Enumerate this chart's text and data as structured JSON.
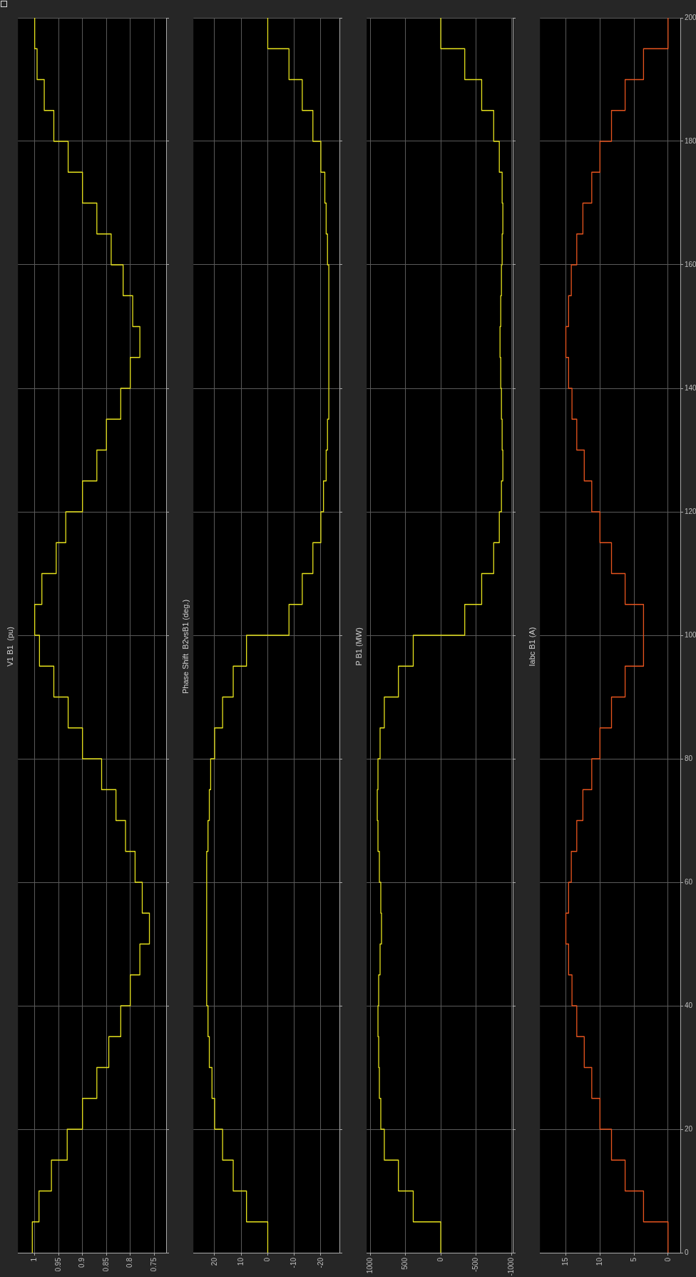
{
  "chart_data": [
    {
      "type": "line",
      "title": "V1 B1  (pu)",
      "color": "#e6e21c",
      "x": [
        1.005,
        1.005,
        0.991,
        0.991,
        0.965,
        0.965,
        0.932,
        0.932,
        0.9,
        0.9,
        0.87,
        0.87,
        0.845,
        0.845,
        0.82,
        0.82,
        0.8,
        0.8,
        0.78,
        0.78,
        0.76,
        0.76,
        0.775,
        0.775,
        0.79,
        0.79,
        0.81,
        0.81,
        0.83,
        0.83,
        0.86,
        0.86,
        0.9,
        0.9,
        0.93,
        0.93,
        0.96,
        0.96,
        0.99,
        0.99,
        1.0,
        1.0,
        0.985,
        0.985,
        0.955,
        0.955,
        0.935,
        0.935,
        0.9,
        0.9,
        0.87,
        0.87,
        0.85,
        0.85,
        0.82,
        0.82,
        0.8,
        0.8,
        0.78,
        0.78,
        0.795,
        0.795,
        0.815,
        0.815,
        0.84,
        0.84,
        0.87,
        0.87,
        0.9,
        0.9,
        0.93,
        0.93,
        0.96,
        0.96,
        0.98,
        0.98,
        0.995,
        0.995,
        1.0,
        1.0
      ],
      "values": [
        0,
        5,
        5,
        10,
        10,
        15,
        15,
        20,
        20,
        25,
        25,
        30,
        30,
        35,
        35,
        40,
        40,
        45,
        45,
        50,
        50,
        55,
        55,
        60,
        60,
        65,
        65,
        70,
        70,
        75,
        75,
        80,
        80,
        85,
        85,
        90,
        90,
        95,
        95,
        100,
        100,
        105,
        105,
        110,
        110,
        115,
        115,
        120,
        120,
        125,
        125,
        130,
        130,
        135,
        135,
        140,
        140,
        145,
        145,
        150,
        150,
        155,
        155,
        160,
        160,
        165,
        165,
        170,
        170,
        175,
        175,
        180,
        180,
        185,
        185,
        190,
        190,
        195,
        195,
        200
      ],
      "xlim": [
        1.035,
        0.725
      ],
      "xticks": [
        1,
        0.95,
        0.9,
        0.85,
        0.8,
        0.75
      ],
      "ylim": [
        0,
        200
      ],
      "yticks": [
        0,
        20,
        40,
        60,
        80,
        100,
        120,
        140,
        160,
        180,
        200
      ],
      "grid": true,
      "tick_labels": "x"
    },
    {
      "type": "line",
      "title": "Phase Shift  B2vsB1 (deg.)",
      "color": "#e6e21c",
      "x": [
        0,
        0,
        8,
        8,
        13,
        13,
        17,
        17,
        20,
        20,
        21,
        21,
        22,
        22,
        22.5,
        22.5,
        23,
        23,
        23,
        23,
        23,
        23,
        23,
        23,
        23,
        23,
        22.5,
        22.5,
        22,
        22,
        21.5,
        21.5,
        20,
        20,
        17,
        17,
        13,
        13,
        8,
        8,
        -8,
        -8,
        -13,
        -13,
        -17,
        -17,
        -20,
        -20,
        -21,
        -21,
        -22,
        -22,
        -22.5,
        -22.5,
        -23,
        -23,
        -23,
        -23,
        -23,
        -23,
        -23,
        -23,
        -23,
        -23,
        -22.5,
        -22.5,
        -22,
        -22,
        -21.5,
        -21.5,
        -20,
        -20,
        -17,
        -17,
        -13,
        -13,
        -8,
        -8,
        0,
        0
      ],
      "values": [
        0,
        5,
        5,
        10,
        10,
        15,
        15,
        20,
        20,
        25,
        25,
        30,
        30,
        35,
        35,
        40,
        40,
        45,
        45,
        50,
        50,
        55,
        55,
        60,
        60,
        65,
        65,
        70,
        70,
        75,
        75,
        80,
        80,
        85,
        85,
        90,
        90,
        95,
        95,
        100,
        100,
        105,
        105,
        110,
        110,
        115,
        115,
        120,
        120,
        125,
        125,
        130,
        130,
        135,
        135,
        140,
        140,
        145,
        145,
        150,
        150,
        155,
        155,
        160,
        160,
        165,
        165,
        170,
        170,
        175,
        175,
        180,
        180,
        185,
        185,
        190,
        190,
        195,
        195,
        200
      ],
      "xlim": [
        28,
        -27
      ],
      "xticks": [
        20,
        10,
        0,
        -10,
        -20
      ],
      "ylim": [
        0,
        200
      ],
      "yticks": [
        0,
        20,
        40,
        60,
        80,
        100,
        120,
        140,
        160,
        180,
        200
      ],
      "grid": true,
      "tick_labels": "x"
    },
    {
      "type": "line",
      "title": "P B1 (MW)",
      "color": "#e6e21c",
      "x": [
        0,
        0,
        390,
        390,
        600,
        600,
        800,
        800,
        850,
        850,
        870,
        870,
        880,
        880,
        890,
        890,
        880,
        880,
        860,
        860,
        840,
        840,
        850,
        850,
        870,
        870,
        890,
        890,
        900,
        900,
        890,
        890,
        860,
        860,
        800,
        800,
        600,
        600,
        390,
        390,
        -340,
        -340,
        -580,
        -580,
        -750,
        -750,
        -830,
        -830,
        -860,
        -860,
        -880,
        -880,
        -870,
        -870,
        -860,
        -860,
        -850,
        -850,
        -840,
        -840,
        -850,
        -850,
        -860,
        -860,
        -870,
        -870,
        -880,
        -880,
        -870,
        -870,
        -830,
        -830,
        -750,
        -750,
        -580,
        -580,
        -340,
        -340,
        0,
        0
      ],
      "values": [
        0,
        5,
        5,
        10,
        10,
        15,
        15,
        20,
        20,
        25,
        25,
        30,
        30,
        35,
        35,
        40,
        40,
        45,
        45,
        50,
        50,
        55,
        55,
        60,
        60,
        65,
        65,
        70,
        70,
        75,
        75,
        80,
        80,
        85,
        85,
        90,
        90,
        95,
        95,
        100,
        100,
        105,
        105,
        110,
        110,
        115,
        115,
        120,
        120,
        125,
        125,
        130,
        130,
        135,
        135,
        140,
        140,
        145,
        145,
        150,
        150,
        155,
        155,
        160,
        160,
        165,
        165,
        170,
        170,
        175,
        175,
        180,
        180,
        185,
        185,
        190,
        190,
        195,
        195,
        200
      ],
      "xlim": [
        1050,
        -1020
      ],
      "xticks": [
        1000,
        500,
        0,
        -500,
        -1000
      ],
      "ylim": [
        0,
        200
      ],
      "yticks": [
        0,
        20,
        40,
        60,
        80,
        100,
        120,
        140,
        160,
        180,
        200
      ],
      "grid": true,
      "tick_labels": "x"
    },
    {
      "type": "line",
      "title": "Iabc B1 (A)",
      "color": "#e8541e",
      "x": [
        0,
        0,
        3.6,
        3.6,
        6.3,
        6.3,
        8.3,
        8.3,
        10,
        10,
        11.2,
        11.2,
        12.3,
        12.3,
        13.4,
        13.4,
        14.1,
        14.1,
        14.6,
        14.6,
        15,
        15,
        14.6,
        14.6,
        14.2,
        14.2,
        13.4,
        13.4,
        12.5,
        12.5,
        11.2,
        11.2,
        10,
        10,
        8.3,
        8.3,
        6.3,
        6.3,
        3.6,
        3.6,
        6.3,
        6.3,
        8.3,
        8.3,
        10,
        10,
        11.2,
        11.2,
        12.3,
        12.3,
        13.4,
        13.4,
        14.1,
        14.1,
        14.6,
        14.6,
        15,
        15,
        14.6,
        14.6,
        14.2,
        14.2,
        13.4,
        13.4,
        12.5,
        12.5,
        11.2,
        11.2,
        10,
        10,
        8.3,
        8.3,
        6.3,
        6.3,
        3.6,
        3.6,
        0,
        0
      ],
      "values": [
        0,
        5,
        5,
        10,
        10,
        15,
        15,
        20,
        20,
        25,
        25,
        30,
        30,
        35,
        35,
        40,
        40,
        45,
        45,
        50,
        50,
        55,
        55,
        60,
        60,
        65,
        65,
        70,
        70,
        75,
        75,
        80,
        80,
        85,
        85,
        90,
        90,
        95,
        95,
        105,
        105,
        110,
        110,
        115,
        115,
        120,
        120,
        125,
        125,
        130,
        130,
        135,
        135,
        140,
        140,
        145,
        145,
        150,
        150,
        155,
        155,
        160,
        160,
        165,
        165,
        170,
        170,
        175,
        175,
        180,
        180,
        185,
        185,
        190,
        190,
        195,
        195,
        200
      ],
      "xlim": [
        18.8,
        -1.8
      ],
      "xticks": [
        15,
        10,
        5,
        0
      ],
      "ylim": [
        0,
        200
      ],
      "yticks": [
        0,
        20,
        40,
        60,
        80,
        100,
        120,
        140,
        160,
        180,
        200
      ],
      "grid": true
    }
  ]
}
